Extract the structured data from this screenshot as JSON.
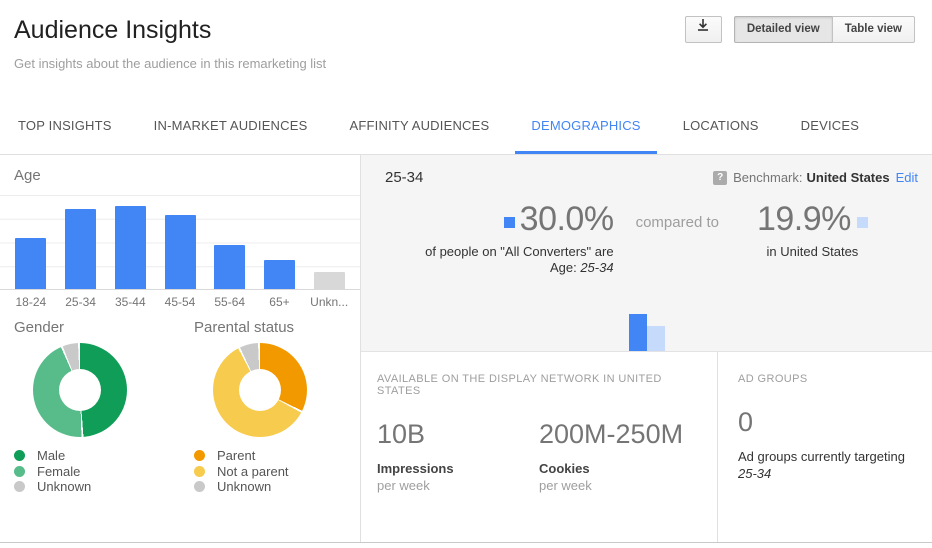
{
  "header": {
    "title": "Audience Insights",
    "subtitle": "Get insights about the audience in this remarketing list",
    "view_buttons": [
      {
        "label": "Detailed view",
        "selected": true
      },
      {
        "label": "Table view",
        "selected": false
      }
    ]
  },
  "tabs": [
    {
      "label": "TOP INSIGHTS",
      "active": false
    },
    {
      "label": "IN-MARKET AUDIENCES",
      "active": false
    },
    {
      "label": "AFFINITY AUDIENCES",
      "active": false
    },
    {
      "label": "DEMOGRAPHICS",
      "active": true
    },
    {
      "label": "LOCATIONS",
      "active": false
    },
    {
      "label": "DEVICES",
      "active": false
    }
  ],
  "left_panel": {
    "age_title": "Age",
    "gender_title": "Gender",
    "parental_title": "Parental status"
  },
  "detail_panel": {
    "selected_segment": "25-34",
    "benchmark": {
      "help_glyph": "?",
      "label": "Benchmark:",
      "value": "United States",
      "edit_link": "Edit"
    },
    "comparison": {
      "left_value": "30.0%",
      "left_line1": "of people on \"All Converters\" are",
      "left_line2_prefix": "Age: ",
      "left_line2_value": "25-34",
      "middle_text": "compared to",
      "right_value": "19.9%",
      "right_caption": "in United States"
    }
  },
  "availability": {
    "heading": "AVAILABLE ON THE DISPLAY NETWORK IN UNITED STATES",
    "stats": [
      {
        "value": "10B",
        "label": "Impressions",
        "sub": "per week"
      },
      {
        "value": "200M-250M",
        "label": "Cookies",
        "sub": "per week"
      }
    ]
  },
  "ad_groups": {
    "heading": "AD GROUPS",
    "value": "0",
    "caption": "Ad groups currently targeting",
    "target": "25-34"
  },
  "colors": {
    "accent_blue": "#4285F4",
    "light_blue": "#C6DAFC",
    "bar_gray": "#D8D8D8",
    "male_green": "#0F9D58",
    "female_green": "#57BB8A",
    "unknown_gray": "#C9C9C9",
    "parent_orange": "#F29900",
    "not_parent_yellow": "#F7CB4D",
    "panel_gray": "#F5F5F5"
  },
  "chart_data": [
    {
      "id": "age_distribution",
      "type": "bar",
      "title": "Age",
      "categories": [
        "18-24",
        "25-34",
        "35-44",
        "45-54",
        "55-64",
        "65+",
        "Unkn..."
      ],
      "values": [
        19,
        30,
        31,
        27.5,
        16.5,
        11,
        6.5
      ],
      "unit": "%",
      "ylim": [
        0,
        35.5
      ],
      "grid": true,
      "bar_colors": [
        "#4285F4",
        "#4285F4",
        "#4285F4",
        "#4285F4",
        "#4285F4",
        "#4285F4",
        "#D8D8D8"
      ]
    },
    {
      "id": "gender",
      "type": "pie",
      "title": "Gender",
      "slices": [
        {
          "label": "Male",
          "value": 49.5,
          "color": "#0F9D58"
        },
        {
          "label": "Female",
          "value": 44.5,
          "color": "#57BB8A"
        },
        {
          "label": "Unknown",
          "value": 6,
          "color": "#C9C9C9"
        }
      ],
      "legend_position": "bottom"
    },
    {
      "id": "parental_status",
      "type": "pie",
      "title": "Parental status",
      "slices": [
        {
          "label": "Parent",
          "value": 33,
          "color": "#F29900"
        },
        {
          "label": "Not a parent",
          "value": 60,
          "color": "#F7CB4D"
        },
        {
          "label": "Unknown",
          "value": 7,
          "color": "#C9C9C9"
        }
      ],
      "legend_position": "bottom"
    },
    {
      "id": "comparison_25_34",
      "type": "bar",
      "categories": [
        "All Converters",
        "United States"
      ],
      "values": [
        30.0,
        19.9
      ],
      "unit": "%",
      "bar_colors": [
        "#4285F4",
        "#C6DAFC"
      ]
    }
  ]
}
